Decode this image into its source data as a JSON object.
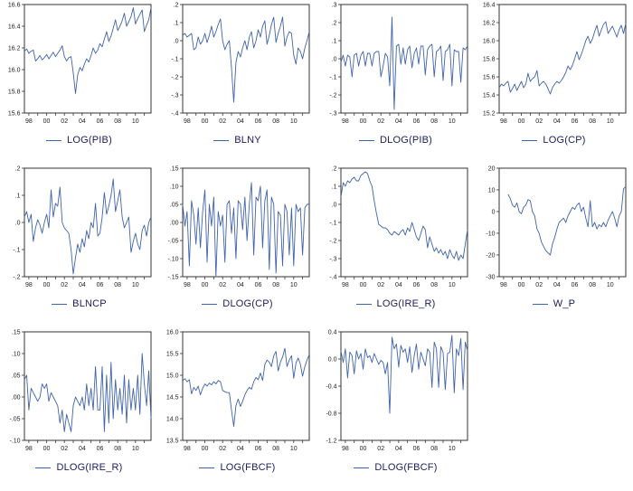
{
  "page": {
    "background": "#ffffff"
  },
  "style": {
    "line_color": "#3f63ad",
    "frame_color": "#333333",
    "tick_label_color": "#222222",
    "legend_text_color": "#1c1c5e"
  },
  "x_axis": {
    "tick_labels": [
      "98",
      "00",
      "02",
      "04",
      "06",
      "08",
      "10"
    ],
    "label_indices": [
      2,
      10,
      18,
      26,
      34,
      42,
      50
    ],
    "minor_tick_start": 2,
    "minor_tick_step": 4,
    "n_points": 58
  },
  "chart_data": [
    {
      "type": "line",
      "legend": "LOG(PIB)",
      "ylim": [
        15.6,
        16.6
      ],
      "y_ticks": [
        "16.6",
        "16.4",
        "16.2",
        "16.0",
        "15.8",
        "15.6"
      ],
      "values": [
        16.17,
        16.19,
        16.15,
        16.17,
        16.18,
        16.08,
        16.1,
        16.13,
        16.09,
        16.11,
        16.14,
        16.1,
        16.13,
        16.16,
        16.12,
        16.15,
        16.18,
        16.22,
        16.12,
        16.08,
        16.11,
        16.12,
        15.97,
        15.78,
        15.95,
        16.02,
        15.99,
        16.05,
        16.1,
        16.07,
        16.13,
        16.2,
        16.15,
        16.18,
        16.24,
        16.21,
        16.28,
        16.35,
        16.26,
        16.31,
        16.38,
        16.46,
        16.36,
        16.4,
        16.45,
        16.52,
        16.4,
        16.44,
        16.49,
        16.57,
        16.42,
        16.47,
        16.51,
        16.55,
        16.35,
        16.41,
        16.46,
        16.57
      ]
    },
    {
      "type": "line",
      "legend": "BLNY",
      "ylim": [
        -0.4,
        0.2
      ],
      "y_ticks": [
        ".2",
        ".1",
        ".0",
        "-.1",
        "-.2",
        "-.3",
        "-.4"
      ],
      "values": [
        0.03,
        0.04,
        0.02,
        0.03,
        0.04,
        -0.05,
        -0.04,
        0.02,
        -0.02,
        0.0,
        0.04,
        -0.01,
        0.03,
        0.08,
        0.02,
        0.05,
        0.09,
        0.12,
        0.0,
        -0.05,
        -0.02,
        0.0,
        -0.15,
        -0.34,
        -0.12,
        -0.06,
        -0.09,
        -0.04,
        0.0,
        -0.05,
        0.02,
        0.05,
        -0.04,
        0.0,
        0.06,
        0.02,
        0.08,
        0.11,
        -0.02,
        0.03,
        0.09,
        0.13,
        -0.01,
        0.04,
        0.08,
        0.13,
        -0.03,
        0.02,
        0.05,
        0.04,
        -0.08,
        -0.13,
        -0.04,
        -0.06,
        -0.1,
        -0.04,
        0.0,
        0.05
      ]
    },
    {
      "type": "line",
      "legend": "DLOG(PIB)",
      "ylim": [
        -0.3,
        0.3
      ],
      "y_ticks": [
        ".3",
        ".2",
        ".1",
        ".0",
        "-.1",
        "-.2",
        "-.3"
      ],
      "values": [
        -0.02,
        0.02,
        -0.04,
        0.02,
        0.01,
        -0.1,
        0.02,
        0.03,
        -0.04,
        0.02,
        0.04,
        -0.04,
        0.03,
        0.03,
        -0.04,
        0.03,
        0.04,
        0.04,
        -0.1,
        -0.04,
        0.03,
        0.01,
        -0.15,
        0.23,
        -0.28,
        0.07,
        0.08,
        -0.03,
        0.06,
        -0.03,
        0.05,
        0.07,
        -0.05,
        0.03,
        0.06,
        -0.03,
        0.07,
        0.07,
        -0.09,
        0.05,
        0.07,
        0.08,
        -0.1,
        0.04,
        0.05,
        0.07,
        -0.12,
        0.04,
        0.05,
        0.08,
        -0.15,
        0.05,
        0.04,
        0.04,
        -0.13,
        0.06,
        0.05,
        0.07
      ]
    },
    {
      "type": "line",
      "legend": "LOG(CP)",
      "ylim": [
        15.2,
        16.4
      ],
      "y_ticks": [
        "16.4",
        "16.2",
        "16.0",
        "15.8",
        "15.6",
        "15.4",
        "15.2"
      ],
      "values": [
        15.48,
        15.52,
        15.5,
        15.53,
        15.55,
        15.43,
        15.47,
        15.52,
        15.45,
        15.5,
        15.55,
        15.48,
        15.52,
        15.64,
        15.55,
        15.58,
        15.6,
        15.67,
        15.5,
        15.53,
        15.55,
        15.52,
        15.47,
        15.41,
        15.48,
        15.52,
        15.55,
        15.53,
        15.56,
        15.6,
        15.65,
        15.72,
        15.68,
        15.73,
        15.8,
        15.88,
        15.79,
        15.85,
        15.92,
        16.0,
        16.05,
        15.97,
        16.02,
        16.1,
        16.17,
        16.05,
        16.12,
        16.18,
        16.21,
        16.08,
        16.12,
        16.16,
        16.1,
        16.04,
        16.12,
        16.17,
        16.08,
        16.19
      ]
    },
    {
      "type": "line",
      "legend": "BLNCP",
      "ylim": [
        -0.2,
        0.2
      ],
      "y_ticks": [
        ".2",
        ".1",
        ".0",
        "-.1",
        "-.2"
      ],
      "values": [
        0.02,
        0.04,
        0.0,
        0.03,
        -0.07,
        -0.02,
        0.01,
        -0.01,
        -0.04,
        0.0,
        0.03,
        -0.02,
        0.12,
        0.02,
        0.07,
        0.06,
        0.13,
        0.0,
        -0.02,
        -0.03,
        -0.04,
        -0.1,
        -0.19,
        -0.13,
        -0.08,
        -0.11,
        -0.06,
        -0.09,
        -0.03,
        -0.06,
        0.0,
        -0.02,
        0.07,
        -0.05,
        -0.04,
        0.02,
        0.11,
        0.03,
        0.06,
        0.1,
        0.16,
        0.04,
        0.08,
        0.12,
        0.02,
        -0.02,
        0.0,
        0.02,
        -0.11,
        -0.07,
        -0.04,
        -0.08,
        -0.1,
        -0.03,
        -0.01,
        -0.05,
        0.0,
        0.02
      ]
    },
    {
      "type": "line",
      "legend": "DLOG(CP)",
      "ylim": [
        -0.15,
        0.15
      ],
      "y_ticks": [
        ".15",
        ".10",
        ".05",
        ".00",
        "-.05",
        "-.10",
        "-.15"
      ],
      "values": [
        0.05,
        -0.01,
        0.03,
        -0.12,
        0.06,
        0.02,
        -0.06,
        0.04,
        -0.07,
        0.03,
        0.09,
        -0.11,
        0.05,
        -0.01,
        0.07,
        -0.15,
        0.03,
        -0.01,
        0.02,
        -0.11,
        0.05,
        0.06,
        -0.03,
        0.04,
        -0.1,
        0.06,
        0.05,
        -0.02,
        0.07,
        -0.05,
        0.05,
        0.11,
        -0.09,
        0.07,
        0.06,
        0.1,
        -0.07,
        0.06,
        0.09,
        -0.13,
        0.07,
        0.05,
        -0.14,
        0.03,
        0.02,
        -0.12,
        0.05,
        0.03,
        -0.09,
        0.04,
        -0.12,
        0.05,
        0.03,
        0.04,
        -0.09,
        0.04,
        0.05,
        0.05
      ]
    },
    {
      "type": "line",
      "legend": "LOG(IRE_R)",
      "ylim": [
        -0.4,
        0.2
      ],
      "y_ticks": [
        ".2",
        ".1",
        ".0",
        "-.1",
        "-.2",
        "-.3",
        "-.4"
      ],
      "values": [
        0.04,
        0.12,
        0.1,
        0.13,
        0.12,
        0.14,
        0.15,
        0.13,
        0.13,
        0.16,
        0.17,
        0.18,
        0.17,
        0.13,
        0.1,
        0.02,
        -0.05,
        -0.11,
        -0.12,
        -0.13,
        -0.13,
        -0.14,
        -0.16,
        -0.17,
        -0.15,
        -0.16,
        -0.17,
        -0.15,
        -0.14,
        -0.17,
        -0.13,
        -0.15,
        -0.1,
        -0.14,
        -0.18,
        -0.2,
        -0.16,
        -0.12,
        -0.14,
        -0.24,
        -0.18,
        -0.22,
        -0.26,
        -0.24,
        -0.27,
        -0.25,
        -0.28,
        -0.26,
        -0.3,
        -0.25,
        -0.28,
        -0.3,
        -0.26,
        -0.31,
        -0.28,
        -0.3,
        -0.22,
        -0.14
      ]
    },
    {
      "type": "line",
      "legend": "W_P",
      "ylim": [
        -30,
        20
      ],
      "y_ticks": [
        "20",
        "10",
        "0",
        "-10",
        "-20",
        "-30"
      ],
      "values": [
        null,
        null,
        null,
        null,
        8,
        6,
        3,
        2,
        4,
        0,
        -1,
        2,
        3,
        5.5,
        5,
        0,
        -2,
        -8,
        -10,
        -14,
        -16,
        -18,
        -19,
        -20,
        -15,
        -12,
        -8,
        -5,
        -4,
        -3,
        -5,
        -2,
        0,
        2,
        1,
        3,
        4,
        0,
        2,
        -3,
        -7,
        5,
        -7,
        -5,
        -8,
        -6,
        -7,
        -5,
        -7,
        -4,
        -2,
        0,
        -3,
        -7,
        -2,
        0,
        10.5,
        11.5
      ]
    },
    {
      "type": "line",
      "legend": "DLOG(IRE_R)",
      "ylim": [
        -0.1,
        0.15
      ],
      "y_ticks": [
        ".15",
        ".10",
        ".05",
        ".00",
        "-.05",
        "-.10"
      ],
      "values": [
        0.04,
        0.05,
        -0.03,
        0.02,
        0.01,
        0.0,
        -0.01,
        0.0,
        0.03,
        0.02,
        0.03,
        -0.01,
        0.01,
        0.0,
        -0.01,
        -0.02,
        -0.06,
        -0.03,
        -0.08,
        -0.04,
        -0.06,
        -0.08,
        -0.02,
        0.0,
        -0.01,
        -0.02,
        0.0,
        -0.03,
        0.03,
        -0.02,
        0.02,
        -0.03,
        0.07,
        -0.03,
        -0.03,
        0.07,
        -0.08,
        0.05,
        -0.06,
        0.08,
        -0.05,
        0.04,
        -0.03,
        0.02,
        -0.04,
        0.05,
        -0.06,
        0.04,
        -0.03,
        0.02,
        -0.03,
        0.05,
        -0.04,
        0.1,
        0.03,
        -0.02,
        0.06,
        -0.05
      ]
    },
    {
      "type": "line",
      "legend": "LOG(FBCF)",
      "ylim": [
        13.5,
        16.0
      ],
      "y_ticks": [
        "16.0",
        "15.5",
        "15.0",
        "14.5",
        "14.0",
        "13.5"
      ],
      "values": [
        14.88,
        14.92,
        14.85,
        14.9,
        14.57,
        14.72,
        14.65,
        14.75,
        14.55,
        14.7,
        14.8,
        14.75,
        14.82,
        14.78,
        14.85,
        14.8,
        14.88,
        14.85,
        14.65,
        14.62,
        14.6,
        14.6,
        14.2,
        13.82,
        14.3,
        14.45,
        14.28,
        14.4,
        14.55,
        14.65,
        14.72,
        14.68,
        14.85,
        14.95,
        14.9,
        15.05,
        14.88,
        15.25,
        15.35,
        15.3,
        15.2,
        15.45,
        15.55,
        15.1,
        15.3,
        15.42,
        15.62,
        15.2,
        15.35,
        15.45,
        14.93,
        15.28,
        15.4,
        15.25,
        14.98,
        15.2,
        15.35,
        15.48
      ]
    },
    {
      "type": "line",
      "legend": "DLOG(FBCF)",
      "ylim": [
        -1.2,
        0.4
      ],
      "y_ticks": [
        "0.4",
        "0.0",
        "-0.4",
        "-0.8",
        "-1.2"
      ],
      "values": [
        0.12,
        -0.05,
        0.15,
        -0.28,
        0.1,
        0.05,
        -0.22,
        0.12,
        0.0,
        0.08,
        -0.15,
        0.15,
        0.02,
        0.05,
        -0.05,
        0.08,
        0.0,
        -0.08,
        -0.02,
        -0.05,
        -0.22,
        -0.05,
        -0.8,
        0.32,
        0.15,
        0.22,
        -0.12,
        0.2,
        0.1,
        0.15,
        -0.05,
        0.18,
        -0.2,
        0.05,
        0.22,
        -0.15,
        0.1,
        0.0,
        -0.1,
        0.15,
        0.1,
        -0.42,
        0.25,
        0.15,
        -0.42,
        0.18,
        0.1,
        -0.45,
        0.08,
        0.1,
        0.35,
        -0.5,
        0.15,
        0.05,
        0.3,
        -0.45,
        0.25,
        0.12
      ]
    }
  ]
}
